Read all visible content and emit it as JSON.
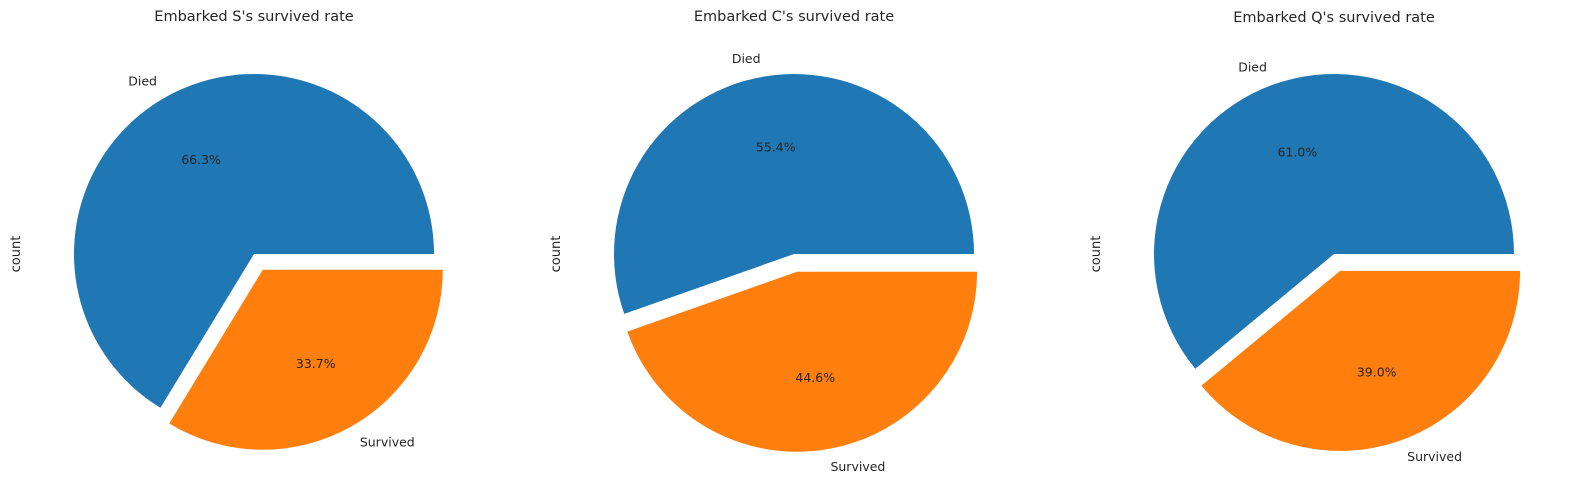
{
  "chart_data": [
    {
      "type": "pie",
      "title": "Embarked S's survived rate",
      "ylabel": "count",
      "labels": [
        "Died",
        "Survived"
      ],
      "values": [
        66.3,
        33.7
      ],
      "value_labels": [
        "66.3%",
        "33.7%"
      ],
      "explode": [
        0,
        0.1
      ],
      "colors": [
        "#1f77b4",
        "#ff7f0e"
      ]
    },
    {
      "type": "pie",
      "title": "Embarked C's survived rate",
      "ylabel": "count",
      "labels": [
        "Died",
        "Survived"
      ],
      "values": [
        55.4,
        44.6
      ],
      "value_labels": [
        "55.4%",
        "44.6%"
      ],
      "explode": [
        0,
        0.1
      ],
      "colors": [
        "#1f77b4",
        "#ff7f0e"
      ]
    },
    {
      "type": "pie",
      "title": "Embarked Q's survived rate",
      "ylabel": "count",
      "labels": [
        "Died",
        "Survived"
      ],
      "values": [
        61.0,
        39.0
      ],
      "value_labels": [
        "61.0%",
        "39.0%"
      ],
      "explode": [
        0,
        0.1
      ],
      "colors": [
        "#1f77b4",
        "#ff7f0e"
      ]
    }
  ]
}
